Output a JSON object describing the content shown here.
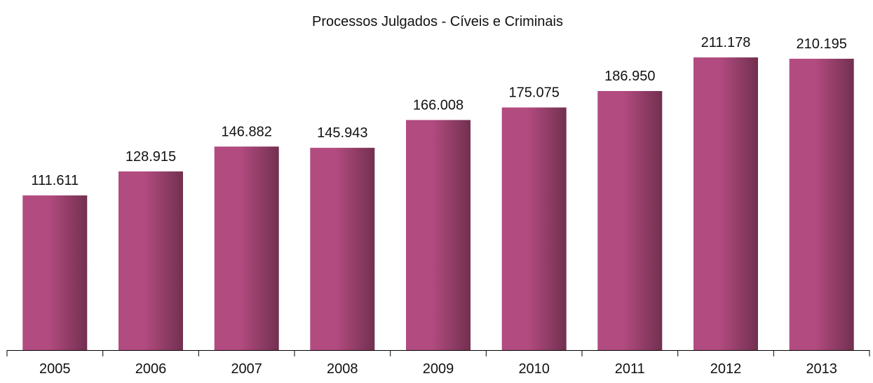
{
  "chart_data": {
    "type": "bar",
    "title": "Processos Julgados - Cíveis e Criminais",
    "xlabel": "",
    "ylabel": "",
    "categories": [
      "2005",
      "2006",
      "2007",
      "2008",
      "2009",
      "2010",
      "2011",
      "2012",
      "2013"
    ],
    "values": [
      111611,
      128915,
      146882,
      145943,
      166008,
      175075,
      186950,
      211178,
      210195
    ],
    "value_labels": [
      "111.611",
      "128.915",
      "146.882",
      "145.943",
      "166.008",
      "175.075",
      "186.950",
      "211.178",
      "210.195"
    ],
    "ylim": [
      0,
      220000
    ],
    "grid": false,
    "legend": "none",
    "colors": {
      "bar_light": "#b24b80",
      "bar_dark": "#72304f",
      "axis": "#000000",
      "text": "#111111"
    }
  }
}
